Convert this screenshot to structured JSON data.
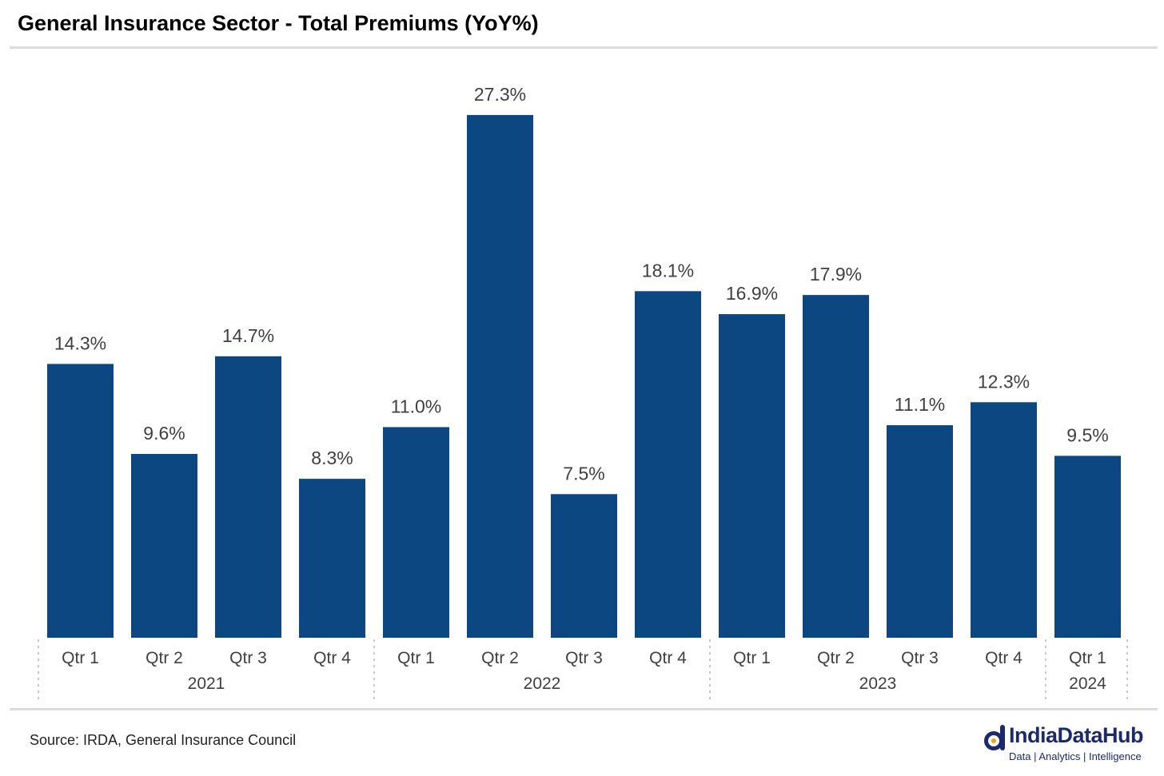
{
  "title": "General Insurance Sector - Total Premiums (YoY%)",
  "source": "Source: IRDA, General Insurance Council",
  "logo": {
    "name": "IndiaDataHub",
    "tagline": "Data | Analytics | Intelligence",
    "icon": "d-logo-icon"
  },
  "colors": {
    "bar": "#0c4781",
    "label": "#404040",
    "divider": "#c8c8c8",
    "brand": "#1b2a6b"
  },
  "chart_data": {
    "type": "bar",
    "title": "General Insurance Sector - Total Premiums (YoY%)",
    "categories": [
      "Qtr 1",
      "Qtr 2",
      "Qtr 3",
      "Qtr 4",
      "Qtr 1",
      "Qtr 2",
      "Qtr 3",
      "Qtr 4",
      "Qtr 1",
      "Qtr 2",
      "Qtr 3",
      "Qtr 4",
      "Qtr 1"
    ],
    "groups": [
      {
        "label": "2021",
        "count": 4
      },
      {
        "label": "2022",
        "count": 4
      },
      {
        "label": "2023",
        "count": 4
      },
      {
        "label": "2024",
        "count": 1
      }
    ],
    "values": [
      14.3,
      9.6,
      14.7,
      8.3,
      11.0,
      27.3,
      7.5,
      18.1,
      16.9,
      17.9,
      11.1,
      12.3,
      9.5
    ],
    "value_labels": [
      "14.3%",
      "9.6%",
      "14.7%",
      "8.3%",
      "11.0%",
      "27.3%",
      "7.5%",
      "18.1%",
      "16.9%",
      "17.9%",
      "11.1%",
      "12.3%",
      "9.5%"
    ],
    "ylim": [
      0,
      30
    ],
    "grid": false,
    "legend": false
  }
}
